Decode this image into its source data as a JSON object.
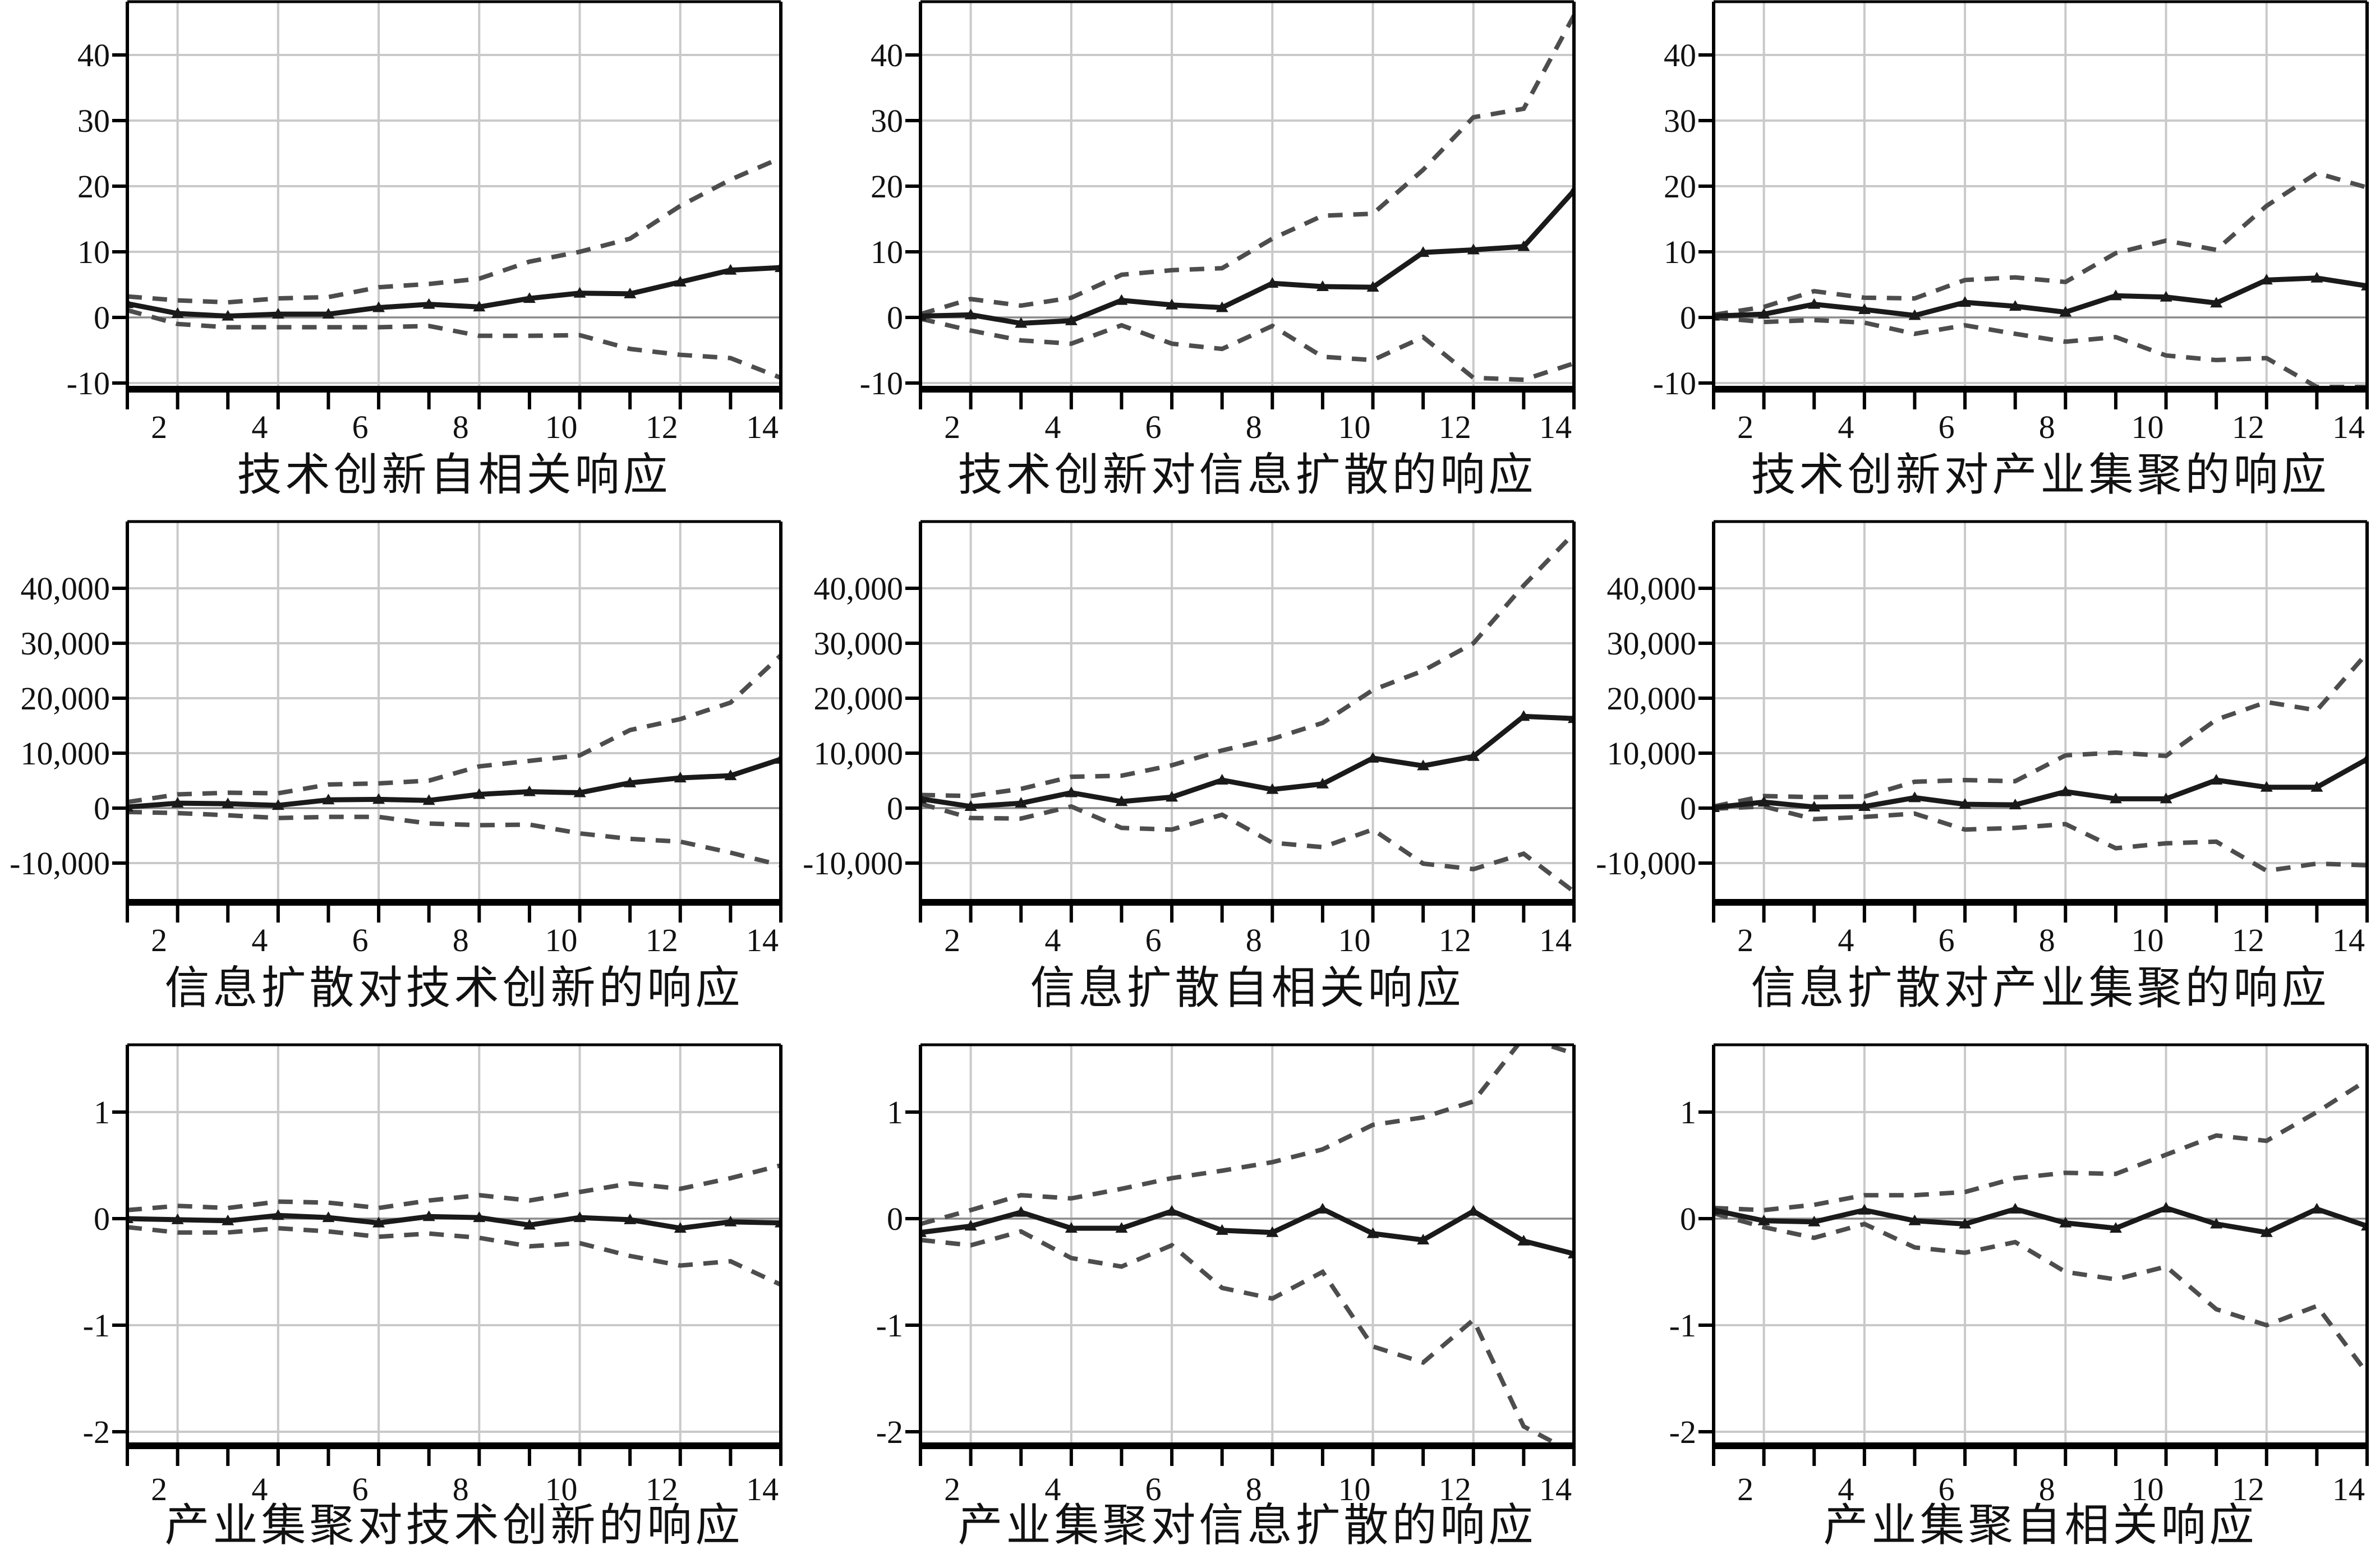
{
  "figure": {
    "description": "3x3 grid of impulse response function charts with 95% confidence bands",
    "line_style": {
      "point_estimate": "solid with triangle markers",
      "confidence_band": "dashed"
    }
  },
  "colors": {
    "background": "#ffffff",
    "series_main": "#1a1a1a",
    "confidence_band": "#4d4d4d",
    "gridline": "#c9c9c9",
    "zero_line": "#8a8a8a",
    "frame": "#000000",
    "text": "#111111"
  },
  "axes": {
    "x_minor_ticks": [
      1,
      2,
      3,
      4,
      5,
      6,
      7,
      8,
      9,
      10,
      11,
      12,
      13,
      14
    ],
    "x_label_values": [
      2,
      4,
      6,
      8,
      10,
      12,
      14
    ],
    "x_tick_labels": [
      "2",
      "4",
      "6",
      "8",
      "10",
      "12",
      "14"
    ],
    "rows": [
      {
        "y_tick_labels": [
          "40",
          "30",
          "20",
          "10",
          "0",
          "-10"
        ],
        "y_tick_values": [
          40,
          30,
          20,
          10,
          0,
          -10
        ],
        "ylim": [
          -10.9,
          48.1
        ]
      },
      {
        "y_tick_labels": [
          "40,000",
          "30,000",
          "20,000",
          "10,000",
          "0",
          "-10,000"
        ],
        "y_tick_values": [
          40000,
          30000,
          20000,
          10000,
          0,
          -10000
        ],
        "ylim": [
          -17200,
          52100
        ]
      },
      {
        "y_tick_labels": [
          "1",
          "0",
          "-1",
          "-2"
        ],
        "y_tick_values": [
          1,
          0,
          -1,
          -2
        ],
        "ylim": [
          -2.13,
          1.63
        ]
      }
    ]
  },
  "chart_data": [
    {
      "type": "line",
      "row": 0,
      "col": 0,
      "title": "技术创新自相关响应",
      "x": [
        1,
        2,
        3,
        4,
        5,
        6,
        7,
        8,
        9,
        10,
        11,
        12,
        13,
        14
      ],
      "series": [
        {
          "name": "point-estimate",
          "values": [
            2.1,
            0.6,
            0.2,
            0.5,
            0.5,
            1.5,
            2.0,
            1.6,
            2.9,
            3.7,
            3.6,
            5.4,
            7.2,
            7.6
          ]
        },
        {
          "name": "upper-band",
          "values": [
            3.2,
            2.6,
            2.3,
            2.9,
            3.1,
            4.6,
            5.1,
            5.9,
            8.5,
            10.0,
            12.0,
            17.0,
            21.0,
            24.3
          ]
        },
        {
          "name": "lower-band",
          "values": [
            1.1,
            -1.0,
            -1.5,
            -1.5,
            -1.5,
            -1.5,
            -1.3,
            -2.8,
            -2.8,
            -2.7,
            -4.8,
            -5.7,
            -6.2,
            -9.2
          ]
        }
      ]
    },
    {
      "type": "line",
      "row": 0,
      "col": 1,
      "title": "技术创新对信息扩散的响应",
      "x": [
        1,
        2,
        3,
        4,
        5,
        6,
        7,
        8,
        9,
        10,
        11,
        12,
        13,
        14
      ],
      "series": [
        {
          "name": "point-estimate",
          "values": [
            0.2,
            0.4,
            -0.9,
            -0.5,
            2.6,
            1.9,
            1.5,
            5.2,
            4.7,
            4.6,
            9.9,
            10.3,
            10.8,
            19.3
          ]
        },
        {
          "name": "upper-band",
          "values": [
            0.5,
            2.8,
            1.8,
            3.0,
            6.5,
            7.2,
            7.5,
            12.0,
            15.5,
            15.8,
            22.5,
            30.5,
            31.8,
            46.0
          ]
        },
        {
          "name": "lower-band",
          "values": [
            -0.2,
            -2.0,
            -3.5,
            -4.0,
            -1.2,
            -4.0,
            -4.8,
            -1.3,
            -6.0,
            -6.5,
            -3.0,
            -9.2,
            -9.5,
            -7.0
          ]
        }
      ]
    },
    {
      "type": "line",
      "row": 0,
      "col": 2,
      "title": "技术创新对产业集聚的响应",
      "x": [
        1,
        2,
        3,
        4,
        5,
        6,
        7,
        8,
        9,
        10,
        11,
        12,
        13,
        14
      ],
      "series": [
        {
          "name": "point-estimate",
          "values": [
            0.2,
            0.5,
            2.0,
            1.2,
            0.3,
            2.3,
            1.7,
            0.8,
            3.3,
            3.1,
            2.2,
            5.7,
            6.0,
            4.8
          ]
        },
        {
          "name": "upper-band",
          "values": [
            0.4,
            1.6,
            4.0,
            3.0,
            2.9,
            5.7,
            6.1,
            5.4,
            9.8,
            11.7,
            10.3,
            17.0,
            22.0,
            19.8
          ]
        },
        {
          "name": "lower-band",
          "values": [
            0.0,
            -0.7,
            -0.4,
            -0.8,
            -2.5,
            -1.2,
            -2.5,
            -3.7,
            -3.0,
            -5.8,
            -6.5,
            -6.2,
            -10.6,
            -10.6
          ]
        }
      ]
    },
    {
      "type": "line",
      "row": 1,
      "col": 0,
      "title": "信息扩散对技术创新的响应",
      "x": [
        1,
        2,
        3,
        4,
        5,
        6,
        7,
        8,
        9,
        10,
        11,
        12,
        13,
        14
      ],
      "series": [
        {
          "name": "point-estimate",
          "values": [
            200,
            900,
            800,
            500,
            1500,
            1600,
            1400,
            2500,
            3000,
            2800,
            4600,
            5500,
            5900,
            8900
          ]
        },
        {
          "name": "upper-band",
          "values": [
            1100,
            2500,
            2800,
            2700,
            4300,
            4500,
            5000,
            7600,
            8600,
            9600,
            14200,
            16200,
            19200,
            27800
          ]
        },
        {
          "name": "lower-band",
          "values": [
            -700,
            -900,
            -1300,
            -1800,
            -1600,
            -1600,
            -2800,
            -3100,
            -3000,
            -4600,
            -5600,
            -6100,
            -8100,
            -10400
          ]
        }
      ]
    },
    {
      "type": "line",
      "row": 1,
      "col": 1,
      "title": "信息扩散自相关响应",
      "x": [
        1,
        2,
        3,
        4,
        5,
        6,
        7,
        8,
        9,
        10,
        11,
        12,
        13,
        14
      ],
      "series": [
        {
          "name": "point-estimate",
          "values": [
            1700,
            300,
            900,
            2800,
            1200,
            2000,
            5100,
            3400,
            4400,
            9100,
            7700,
            9400,
            16700,
            16300
          ]
        },
        {
          "name": "upper-band",
          "values": [
            2400,
            2200,
            3500,
            5700,
            5900,
            7800,
            10500,
            12600,
            15500,
            21500,
            25000,
            30000,
            40500,
            50000
          ]
        },
        {
          "name": "lower-band",
          "values": [
            800,
            -1800,
            -1900,
            300,
            -3600,
            -3900,
            -1200,
            -6300,
            -7100,
            -3900,
            -10100,
            -11100,
            -8300,
            -15200
          ]
        }
      ]
    },
    {
      "type": "line",
      "row": 1,
      "col": 2,
      "title": "信息扩散对产业集聚的响应",
      "x": [
        1,
        2,
        3,
        4,
        5,
        6,
        7,
        8,
        9,
        10,
        11,
        12,
        13,
        14
      ],
      "series": [
        {
          "name": "point-estimate",
          "values": [
            100,
            1100,
            200,
            300,
            1900,
            700,
            600,
            3000,
            1700,
            1700,
            5100,
            3800,
            3800,
            8900
          ]
        },
        {
          "name": "upper-band",
          "values": [
            300,
            2200,
            2000,
            2100,
            4800,
            5100,
            4900,
            9600,
            10100,
            9500,
            16100,
            19300,
            17800,
            28200
          ]
        },
        {
          "name": "lower-band",
          "values": [
            -100,
            300,
            -2000,
            -1600,
            -1000,
            -3900,
            -3600,
            -2900,
            -7300,
            -6400,
            -6100,
            -11400,
            -10100,
            -10400
          ]
        }
      ]
    },
    {
      "type": "line",
      "row": 2,
      "col": 0,
      "title": "产业集聚对技术创新的响应",
      "x": [
        1,
        2,
        3,
        4,
        5,
        6,
        7,
        8,
        9,
        10,
        11,
        12,
        13,
        14
      ],
      "series": [
        {
          "name": "point-estimate",
          "values": [
            0.0,
            -0.01,
            -0.02,
            0.03,
            0.01,
            -0.04,
            0.02,
            0.01,
            -0.06,
            0.01,
            -0.01,
            -0.09,
            -0.03,
            -0.04
          ]
        },
        {
          "name": "upper-band",
          "values": [
            0.08,
            0.12,
            0.1,
            0.16,
            0.15,
            0.1,
            0.17,
            0.22,
            0.17,
            0.25,
            0.33,
            0.28,
            0.38,
            0.5
          ]
        },
        {
          "name": "lower-band",
          "values": [
            -0.08,
            -0.13,
            -0.13,
            -0.09,
            -0.12,
            -0.17,
            -0.14,
            -0.18,
            -0.26,
            -0.23,
            -0.35,
            -0.44,
            -0.4,
            -0.62
          ]
        }
      ]
    },
    {
      "type": "line",
      "row": 2,
      "col": 1,
      "title": "产业集聚对信息扩散的响应",
      "x": [
        1,
        2,
        3,
        4,
        5,
        6,
        7,
        8,
        9,
        10,
        11,
        12,
        13,
        14
      ],
      "series": [
        {
          "name": "point-estimate",
          "values": [
            -0.13,
            -0.07,
            0.06,
            -0.09,
            -0.09,
            0.07,
            -0.11,
            -0.13,
            0.09,
            -0.14,
            -0.2,
            0.07,
            -0.21,
            -0.33
          ]
        },
        {
          "name": "upper-band",
          "values": [
            -0.05,
            0.08,
            0.22,
            0.19,
            0.28,
            0.38,
            0.45,
            0.53,
            0.65,
            0.88,
            0.95,
            1.1,
            1.7,
            1.55
          ]
        },
        {
          "name": "lower-band",
          "values": [
            -0.2,
            -0.25,
            -0.12,
            -0.37,
            -0.45,
            -0.25,
            -0.65,
            -0.75,
            -0.5,
            -1.2,
            -1.35,
            -0.95,
            -1.95,
            -2.2
          ]
        }
      ]
    },
    {
      "type": "line",
      "row": 2,
      "col": 2,
      "title": "产业集聚自相关响应",
      "x": [
        1,
        2,
        3,
        4,
        5,
        6,
        7,
        8,
        9,
        10,
        11,
        12,
        13,
        14
      ],
      "series": [
        {
          "name": "point-estimate",
          "values": [
            0.08,
            -0.02,
            -0.03,
            0.08,
            -0.02,
            -0.05,
            0.09,
            -0.04,
            -0.09,
            0.1,
            -0.05,
            -0.13,
            0.09,
            -0.07
          ]
        },
        {
          "name": "upper-band",
          "values": [
            0.1,
            0.08,
            0.13,
            0.22,
            0.22,
            0.25,
            0.38,
            0.43,
            0.42,
            0.6,
            0.78,
            0.73,
            1.0,
            1.3
          ]
        },
        {
          "name": "lower-band",
          "values": [
            0.05,
            -0.08,
            -0.18,
            -0.05,
            -0.27,
            -0.32,
            -0.22,
            -0.5,
            -0.57,
            -0.45,
            -0.85,
            -1.0,
            -0.82,
            -1.45
          ]
        }
      ]
    }
  ]
}
